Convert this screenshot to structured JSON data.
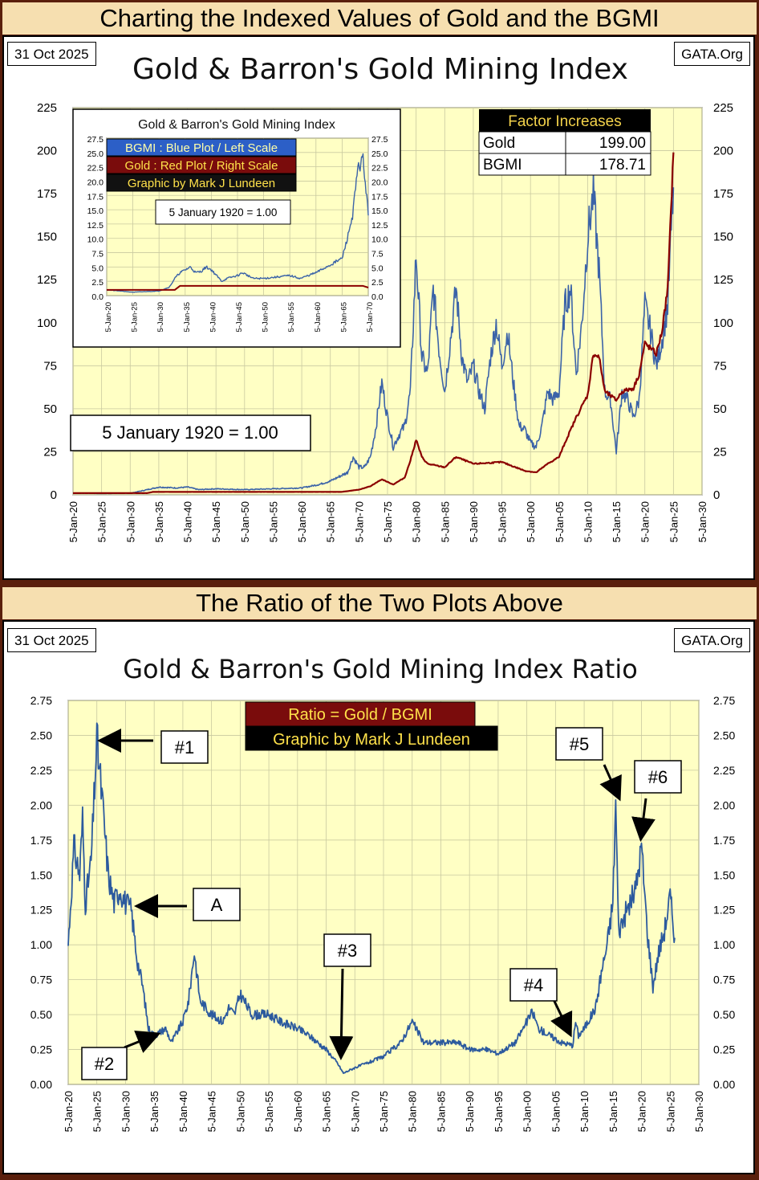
{
  "banners": {
    "top": "Charting the Indexed Values of Gold and the BGMI",
    "middle": "The Ratio of the Two Plots Above"
  },
  "chart1": {
    "date": "31 Oct 2025",
    "source": "GATA.Org",
    "title": "Gold & Barron's Gold Mining Index"
  },
  "chart2": {
    "date": "31 Oct 2025",
    "source": "GATA.Org",
    "title": "Gold & Barron's Gold Mining Index Ratio"
  },
  "colors": {
    "plot_bg": "#ffffc4",
    "grid": "#c9c9a0",
    "gold": "#8b0000",
    "bgmi": "#3b63a8",
    "ratio": "#2c5a9e",
    "legend_blue": "#2c5fc7",
    "legend_red": "#7a0c0c",
    "legend_black": "#111111",
    "banner": "#f6dfb0",
    "frame": "#5a1f0c"
  },
  "chart_data": [
    {
      "type": "line",
      "title": "Gold & Barron's Gold Mining Index",
      "xlabel": "",
      "ylabel": "",
      "xlim": [
        1920,
        2030
      ],
      "ylim": [
        0,
        225
      ],
      "y_ticks": [
        0,
        25,
        50,
        75,
        100,
        125,
        150,
        175,
        200,
        225
      ],
      "x_ticks": [
        "5-Jan-20",
        "5-Jan-25",
        "5-Jan-30",
        "5-Jan-35",
        "5-Jan-40",
        "5-Jan-45",
        "5-Jan-50",
        "5-Jan-55",
        "5-Jan-60",
        "5-Jan-65",
        "5-Jan-70",
        "5-Jan-75",
        "5-Jan-80",
        "5-Jan-85",
        "5-Jan-90",
        "5-Jan-95",
        "5-Jan-00",
        "5-Jan-05",
        "5-Jan-10",
        "5-Jan-15",
        "5-Jan-20",
        "5-Jan-25",
        "5-Jan-30"
      ],
      "grid": true,
      "annotation": "5 January 1920 = 1.00",
      "factor_table": {
        "header": "Factor Increases",
        "rows": [
          [
            "Gold",
            "199.00"
          ],
          [
            "BGMI",
            "178.71"
          ]
        ]
      },
      "series": [
        {
          "color": "#3b63a8",
          "points": [
            [
              1920,
              1
            ],
            [
              1925,
              0.8
            ],
            [
              1930,
              0.9
            ],
            [
              1933,
              3
            ],
            [
              1935,
              4.5
            ],
            [
              1938,
              4
            ],
            [
              1940,
              4.5
            ],
            [
              1942,
              3
            ],
            [
              1945,
              3.5
            ],
            [
              1950,
              3
            ],
            [
              1955,
              3.5
            ],
            [
              1960,
              4
            ],
            [
              1963,
              6
            ],
            [
              1965,
              8
            ],
            [
              1968,
              13
            ],
            [
              1969,
              22
            ],
            [
              1970,
              16
            ],
            [
              1971,
              16
            ],
            [
              1972,
              22
            ],
            [
              1973,
              40
            ],
            [
              1974,
              65
            ],
            [
              1975,
              45
            ],
            [
              1976,
              28
            ],
            [
              1977,
              35
            ],
            [
              1978,
              40
            ],
            [
              1979,
              60
            ],
            [
              1980,
              140
            ],
            [
              1981,
              80
            ],
            [
              1982,
              70
            ],
            [
              1983,
              120
            ],
            [
              1984,
              85
            ],
            [
              1985,
              60
            ],
            [
              1986,
              90
            ],
            [
              1987,
              120
            ],
            [
              1988,
              80
            ],
            [
              1989,
              65
            ],
            [
              1990,
              75
            ],
            [
              1991,
              60
            ],
            [
              1992,
              50
            ],
            [
              1993,
              80
            ],
            [
              1994,
              100
            ],
            [
              1995,
              75
            ],
            [
              1996,
              95
            ],
            [
              1997,
              65
            ],
            [
              1998,
              40
            ],
            [
              1999,
              38
            ],
            [
              2000,
              30
            ],
            [
              2001,
              28
            ],
            [
              2002,
              40
            ],
            [
              2003,
              60
            ],
            [
              2004,
              55
            ],
            [
              2005,
              60
            ],
            [
              2006,
              110
            ],
            [
              2007,
              120
            ],
            [
              2008,
              70
            ],
            [
              2009,
              100
            ],
            [
              2010,
              150
            ],
            [
              2011,
              175
            ],
            [
              2012,
              130
            ],
            [
              2013,
              60
            ],
            [
              2014,
              55
            ],
            [
              2015,
              25
            ],
            [
              2016,
              60
            ],
            [
              2017,
              55
            ],
            [
              2018,
              45
            ],
            [
              2019,
              55
            ],
            [
              2020,
              110
            ],
            [
              2021,
              95
            ],
            [
              2022,
              75
            ],
            [
              2023,
              90
            ],
            [
              2024,
              110
            ],
            [
              2025,
              178.71
            ]
          ]
        },
        {
          "color": "#8b0000",
          "points": [
            [
              1920,
              1
            ],
            [
              1933,
              1
            ],
            [
              1934,
              1.7
            ],
            [
              1960,
              1.7
            ],
            [
              1967,
              1.7
            ],
            [
              1970,
              3
            ],
            [
              1972,
              5
            ],
            [
              1974,
              9
            ],
            [
              1976,
              6
            ],
            [
              1978,
              10
            ],
            [
              1979,
              20
            ],
            [
              1980,
              32
            ],
            [
              1981,
              22
            ],
            [
              1982,
              18
            ],
            [
              1985,
              16
            ],
            [
              1987,
              22
            ],
            [
              1990,
              18
            ],
            [
              1995,
              19
            ],
            [
              1999,
              14
            ],
            [
              2001,
              13
            ],
            [
              2003,
              18
            ],
            [
              2005,
              22
            ],
            [
              2006,
              30
            ],
            [
              2008,
              45
            ],
            [
              2010,
              58
            ],
            [
              2011,
              82
            ],
            [
              2012,
              80
            ],
            [
              2013,
              60
            ],
            [
              2015,
              55
            ],
            [
              2016,
              60
            ],
            [
              2018,
              62
            ],
            [
              2019,
              70
            ],
            [
              2020,
              88
            ],
            [
              2021,
              85
            ],
            [
              2022,
              82
            ],
            [
              2023,
              95
            ],
            [
              2024,
              120
            ],
            [
              2025,
              199
            ]
          ]
        }
      ]
    },
    {
      "type": "line",
      "title": "Gold & Barron's Gold Mining Index",
      "xlabel": "",
      "ylabel": "",
      "xlim": [
        1920,
        1970
      ],
      "ylim": [
        0,
        27.5
      ],
      "y_ticks": [
        0.0,
        2.5,
        5.0,
        7.5,
        10.0,
        12.5,
        15.0,
        17.5,
        20.0,
        22.5,
        25.0,
        27.5
      ],
      "x_ticks": [
        "5-Jan-20",
        "5-Jan-25",
        "5-Jan-30",
        "5-Jan-35",
        "5-Jan-40",
        "5-Jan-45",
        "5-Jan-50",
        "5-Jan-55",
        "5-Jan-60",
        "5-Jan-65",
        "5-Jan-70"
      ],
      "legend": [
        "BGMI : Blue Plot / Left Scale",
        "Gold : Red Plot / Right Scale",
        "Graphic by Mark J Lundeen"
      ],
      "annotation": "5 January 1920 = 1.00",
      "grid": true,
      "series": [
        {
          "color": "#3b63a8",
          "points": [
            [
              1920,
              1
            ],
            [
              1925,
              0.6
            ],
            [
              1930,
              0.8
            ],
            [
              1932,
              1.5
            ],
            [
              1933,
              3
            ],
            [
              1934,
              4
            ],
            [
              1935,
              4.5
            ],
            [
              1936,
              5
            ],
            [
              1937,
              4
            ],
            [
              1938,
              4.2
            ],
            [
              1939,
              5
            ],
            [
              1940,
              4.5
            ],
            [
              1941,
              3.5
            ],
            [
              1942,
              2.5
            ],
            [
              1943,
              3
            ],
            [
              1945,
              3.5
            ],
            [
              1946,
              4
            ],
            [
              1948,
              3
            ],
            [
              1950,
              3
            ],
            [
              1952,
              3.2
            ],
            [
              1955,
              3.5
            ],
            [
              1957,
              3
            ],
            [
              1960,
              4
            ],
            [
              1962,
              5
            ],
            [
              1964,
              6
            ],
            [
              1965,
              6.5
            ],
            [
              1966,
              10
            ],
            [
              1967,
              14
            ],
            [
              1968,
              22
            ],
            [
              1969,
              24
            ],
            [
              1970,
              14
            ]
          ]
        },
        {
          "color": "#8b0000",
          "points": [
            [
              1920,
              1
            ],
            [
              1933,
              1
            ],
            [
              1934,
              1.7
            ],
            [
              1969,
              1.7
            ],
            [
              1970,
              1.4
            ]
          ]
        }
      ]
    },
    {
      "type": "line",
      "title": "Gold & Barron's Gold Mining Index Ratio",
      "xlabel": "",
      "ylabel": "",
      "xlim": [
        1920,
        2030
      ],
      "ylim": [
        0,
        2.75
      ],
      "y_ticks": [
        0.0,
        0.25,
        0.5,
        0.75,
        1.0,
        1.25,
        1.5,
        1.75,
        2.0,
        2.25,
        2.5,
        2.75
      ],
      "x_ticks": [
        "5-Jan-20",
        "5-Jan-25",
        "5-Jan-30",
        "5-Jan-35",
        "5-Jan-40",
        "5-Jan-45",
        "5-Jan-50",
        "5-Jan-55",
        "5-Jan-60",
        "5-Jan-65",
        "5-Jan-70",
        "5-Jan-75",
        "5-Jan-80",
        "5-Jan-85",
        "5-Jan-90",
        "5-Jan-95",
        "5-Jan-00",
        "5-Jan-05",
        "5-Jan-10",
        "5-Jan-15",
        "5-Jan-20",
        "5-Jan-25",
        "5-Jan-30"
      ],
      "grid": true,
      "legend": [
        "Ratio = Gold / BGMI",
        "Graphic by Mark J Lundeen"
      ],
      "annotations": [
        "#1",
        "#2",
        "#3",
        "#4",
        "#5",
        "#6",
        "A"
      ],
      "series": [
        {
          "color": "#2c5a9e",
          "points": [
            [
              1920,
              1.0
            ],
            [
              1921,
              1.7
            ],
            [
              1922,
              1.5
            ],
            [
              1922.5,
              1.9
            ],
            [
              1923,
              1.3
            ],
            [
              1924,
              1.6
            ],
            [
              1925,
              2.47
            ],
            [
              1926,
              2.0
            ],
            [
              1927,
              1.5
            ],
            [
              1928,
              1.3
            ],
            [
              1929,
              1.4
            ],
            [
              1930,
              1.3
            ],
            [
              1931,
              1.25
            ],
            [
              1932,
              0.9
            ],
            [
              1933,
              0.7
            ],
            [
              1934,
              0.4
            ],
            [
              1935,
              0.35
            ],
            [
              1937,
              0.4
            ],
            [
              1938,
              0.3
            ],
            [
              1940,
              0.45
            ],
            [
              1941,
              0.6
            ],
            [
              1942,
              0.95
            ],
            [
              1943,
              0.6
            ],
            [
              1945,
              0.5
            ],
            [
              1947,
              0.45
            ],
            [
              1948,
              0.55
            ],
            [
              1949,
              0.5
            ],
            [
              1950,
              0.65
            ],
            [
              1952,
              0.5
            ],
            [
              1955,
              0.5
            ],
            [
              1957,
              0.45
            ],
            [
              1960,
              0.4
            ],
            [
              1962,
              0.35
            ],
            [
              1965,
              0.25
            ],
            [
              1967,
              0.15
            ],
            [
              1968,
              0.08
            ],
            [
              1969,
              0.1
            ],
            [
              1970,
              0.12
            ],
            [
              1972,
              0.15
            ],
            [
              1975,
              0.2
            ],
            [
              1978,
              0.3
            ],
            [
              1980,
              0.45
            ],
            [
              1982,
              0.3
            ],
            [
              1985,
              0.3
            ],
            [
              1988,
              0.3
            ],
            [
              1990,
              0.25
            ],
            [
              1993,
              0.25
            ],
            [
              1995,
              0.22
            ],
            [
              1998,
              0.3
            ],
            [
              2000,
              0.45
            ],
            [
              2001,
              0.52
            ],
            [
              2002,
              0.4
            ],
            [
              2004,
              0.35
            ],
            [
              2006,
              0.3
            ],
            [
              2008,
              0.28
            ],
            [
              2008.5,
              0.45
            ],
            [
              2009,
              0.35
            ],
            [
              2010,
              0.4
            ],
            [
              2012,
              0.55
            ],
            [
              2013,
              0.8
            ],
            [
              2014,
              1.0
            ],
            [
              2015,
              1.3
            ],
            [
              2015.5,
              2.02
            ],
            [
              2016,
              1.1
            ],
            [
              2017,
              1.2
            ],
            [
              2018,
              1.3
            ],
            [
              2019,
              1.4
            ],
            [
              2020,
              1.71
            ],
            [
              2021,
              1.1
            ],
            [
              2022,
              0.7
            ],
            [
              2023,
              0.95
            ],
            [
              2024,
              1.1
            ],
            [
              2025,
              1.35
            ],
            [
              2025.8,
              1.05
            ]
          ]
        }
      ]
    }
  ]
}
